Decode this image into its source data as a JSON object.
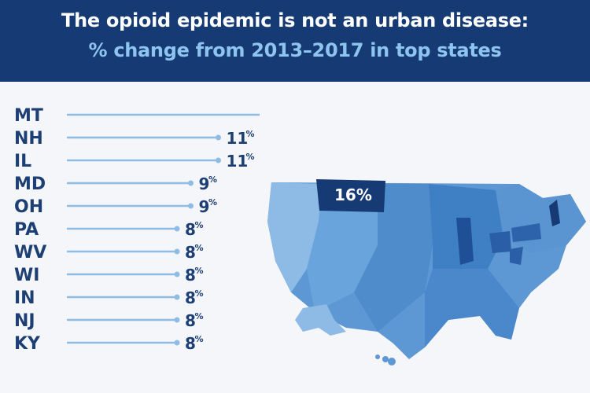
{
  "header": {
    "title": "The opioid epidemic is not an urban disease:",
    "subtitle": "% change from 2013–2017 in top states"
  },
  "map": {
    "highlight_label": "16%"
  },
  "colors": {
    "header_bg": "#163a73",
    "subtitle": "#8ec4f0",
    "label_text": "#1d3f74",
    "bar_line": "#8fbce3",
    "map_dark": "#163a73",
    "map_mid": "#3f7fc4",
    "map_light": "#8dbbe6"
  },
  "chart_data": {
    "type": "bar",
    "orientation": "horizontal",
    "categories": [
      "MT",
      "NH",
      "IL",
      "MD",
      "OH",
      "PA",
      "WV",
      "WI",
      "IN",
      "NJ",
      "KY"
    ],
    "values": [
      16,
      11,
      11,
      9,
      9,
      8,
      8,
      8,
      8,
      8,
      8
    ],
    "value_labels": [
      "16%",
      "11%",
      "11%",
      "9%",
      "9%",
      "8%",
      "8%",
      "8%",
      "8%",
      "8%",
      "8%"
    ],
    "unit": "%",
    "title": "The opioid epidemic is not an urban disease:",
    "subtitle": "% change from 2013–2017 in top states",
    "grid": false,
    "legend": "none"
  }
}
